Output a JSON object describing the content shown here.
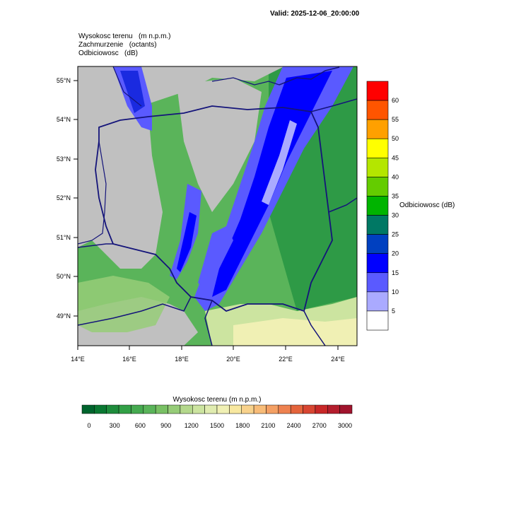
{
  "header": {
    "valid": "Valid: 2025-12-06_20:00:00"
  },
  "fields": [
    {
      "name": "Wysokosc terenu",
      "unit": "(m n.p.m.)"
    },
    {
      "name": "Zachmurzenie",
      "unit": "(octants)"
    },
    {
      "name": "Odbiciowosc",
      "unit": "(dB)"
    }
  ],
  "map": {
    "lat_labels": [
      "55°N",
      "54°N",
      "53°N",
      "52°N",
      "51°N",
      "50°N",
      "49°N"
    ],
    "lon_labels": [
      "14°E",
      "16°E",
      "18°E",
      "20°E",
      "22°E",
      "24°E"
    ]
  },
  "reflectivity_bar": {
    "title": "Odbiciowosc  (dB)",
    "labels": [
      "60",
      "55",
      "50",
      "45",
      "40",
      "35",
      "30",
      "25",
      "20",
      "15",
      "10",
      "5"
    ],
    "colors": [
      "#ff0000",
      "#ff5500",
      "#ffa000",
      "#ffff00",
      "#b4e600",
      "#64cc00",
      "#00b400",
      "#007864",
      "#0040c0",
      "#0000ff",
      "#5a5aff",
      "#aaaaff",
      "#ffffff"
    ]
  },
  "terrain_bar": {
    "title": "Wysokosc terenu  (m n.p.m.)",
    "labels": [
      "0",
      "300",
      "600",
      "900",
      "1200",
      "1500",
      "1800",
      "2100",
      "2400",
      "2700",
      "3000"
    ],
    "colors": [
      "#00642d",
      "#0a7832",
      "#1e8c3c",
      "#32a046",
      "#46aa50",
      "#5ab45a",
      "#78c064",
      "#96cc78",
      "#b4d88c",
      "#cce4a0",
      "#e0ecb0",
      "#f0f0b4",
      "#f8e8a0",
      "#f8d28c",
      "#f8bc78",
      "#f4a064",
      "#ee8250",
      "#e4643c",
      "#d84632",
      "#c82828",
      "#b41e2d",
      "#a0142d"
    ]
  }
}
